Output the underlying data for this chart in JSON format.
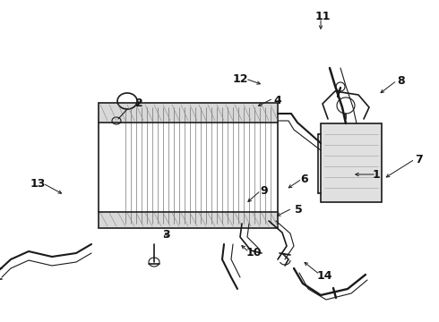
{
  "bg_color": "#ffffff",
  "line_color": "#1a1a1a",
  "label_color": "#111111",
  "fig_width": 4.9,
  "fig_height": 3.6,
  "dpi": 100,
  "label_positions": [
    [
      "1",
      420,
      195
    ],
    [
      "2",
      155,
      115
    ],
    [
      "3",
      185,
      263
    ],
    [
      "4",
      310,
      112
    ],
    [
      "5",
      333,
      235
    ],
    [
      "6",
      340,
      200
    ],
    [
      "7",
      468,
      178
    ],
    [
      "8",
      448,
      90
    ],
    [
      "9",
      295,
      213
    ],
    [
      "10",
      283,
      283
    ],
    [
      "11",
      360,
      18
    ],
    [
      "12",
      268,
      88
    ],
    [
      "13",
      42,
      205
    ],
    [
      "14",
      362,
      308
    ]
  ],
  "leader_lines": [
    [
      420,
      195,
      393,
      195
    ],
    [
      150,
      113,
      160,
      116
    ],
    [
      185,
      265,
      185,
      257
    ],
    [
      305,
      110,
      285,
      120
    ],
    [
      326,
      233,
      306,
      243
    ],
    [
      337,
      200,
      319,
      212
    ],
    [
      463,
      178,
      428,
      200
    ],
    [
      443,
      90,
      422,
      106
    ],
    [
      291,
      213,
      274,
      228
    ],
    [
      278,
      282,
      267,
      272
    ],
    [
      358,
      20,
      358,
      36
    ],
    [
      274,
      88,
      294,
      95
    ],
    [
      48,
      205,
      72,
      218
    ],
    [
      357,
      307,
      337,
      291
    ]
  ]
}
